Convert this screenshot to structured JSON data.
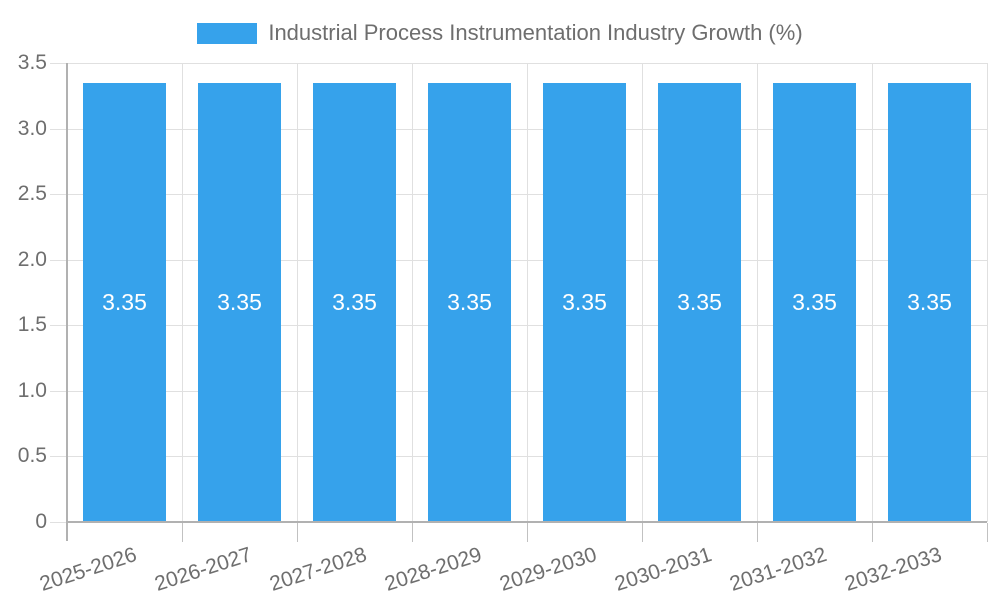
{
  "chart_data": {
    "type": "bar",
    "title": "Industrial Process Instrumentation Industry Growth (%)",
    "legend_label": "Industrial Process Instrumentation Industry Growth (%)",
    "legend_position": "top-center",
    "categories": [
      "2025-2026",
      "2026-2027",
      "2027-2028",
      "2028-2029",
      "2029-2030",
      "2030-2031",
      "2031-2032",
      "2032-2033"
    ],
    "values": [
      3.35,
      3.35,
      3.35,
      3.35,
      3.35,
      3.35,
      3.35,
      3.35
    ],
    "bar_value_labels": [
      "3.35",
      "3.35",
      "3.35",
      "3.35",
      "3.35",
      "3.35",
      "3.35",
      "3.35"
    ],
    "xlabel": "",
    "ylabel": "",
    "ylim": [
      0,
      3.5
    ],
    "ytick_labels": [
      "0",
      "0.5",
      "1.0",
      "1.5",
      "2.0",
      "2.5",
      "3.0",
      "3.5"
    ],
    "grid": true,
    "colors": {
      "bar": "#36a2eb",
      "grid_line": "#e0e0e0",
      "axis_line": "#b1b1b1",
      "tick_mark": "#c1c1c1",
      "tick_text": "#6e6e6e",
      "legend_text": "#6e6e6e",
      "bar_label_text": "#ffffff",
      "background": "#ffffff"
    }
  }
}
